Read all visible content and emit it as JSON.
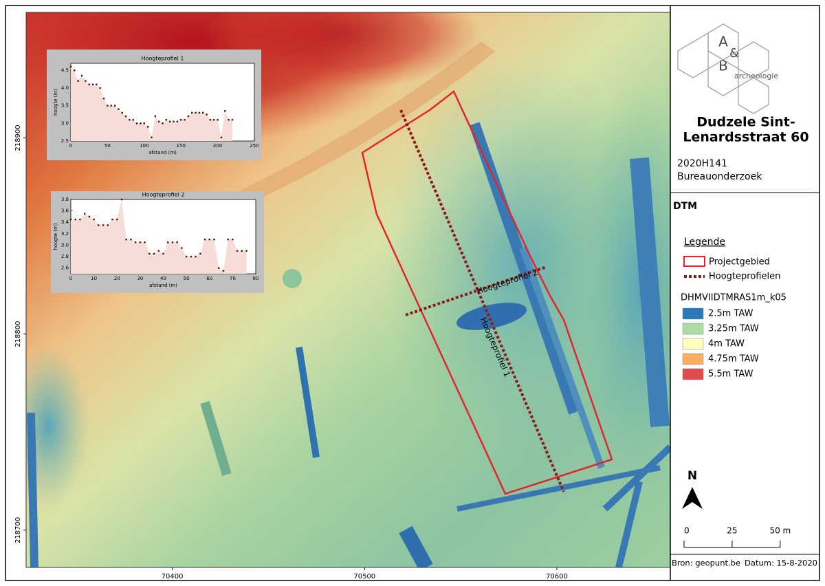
{
  "map": {
    "xlim": [
      70324,
      70659
    ],
    "ylim": [
      218681,
      218964
    ],
    "xticks": [
      70400,
      70500,
      70600
    ],
    "yticks": [
      218700,
      218800,
      218900
    ],
    "labels": [
      "Hoogteprofiel 1",
      "Hoogteprofiel 2"
    ]
  },
  "chart_data": [
    {
      "type": "area",
      "title": "Hoogteprofiel 1",
      "x_label": "afstand (m)",
      "y_label": "hoogte (m)",
      "xlim": [
        0,
        250
      ],
      "ylim": [
        2.5,
        4.7
      ],
      "xticks": [
        0,
        50,
        100,
        150,
        200,
        250
      ],
      "yticks": [
        2.5,
        {
          "value": 3,
          "label": "3.0"
        },
        3.5,
        {
          "value": 4,
          "label": "4.0"
        },
        4.5
      ],
      "fill": "#f6ddd7",
      "color": "#4a1414",
      "x": [
        0,
        5,
        10,
        15,
        20,
        25,
        30,
        35,
        40,
        45,
        50,
        55,
        60,
        65,
        70,
        75,
        80,
        85,
        90,
        95,
        100,
        105,
        110,
        115,
        120,
        125,
        130,
        135,
        140,
        145,
        150,
        155,
        160,
        165,
        170,
        175,
        180,
        185,
        190,
        195,
        200,
        205,
        210,
        215,
        220
      ],
      "values": [
        4.6,
        4.5,
        4.2,
        4.35,
        4.2,
        4.1,
        4.1,
        4.1,
        4.0,
        3.7,
        3.5,
        3.5,
        3.5,
        3.4,
        3.3,
        3.2,
        3.1,
        3.1,
        3.0,
        3.0,
        3.0,
        2.9,
        2.6,
        3.2,
        3.05,
        3.0,
        3.1,
        3.05,
        3.05,
        3.05,
        3.1,
        3.1,
        3.2,
        3.3,
        3.3,
        3.3,
        3.3,
        3.25,
        3.1,
        3.1,
        3.1,
        2.6,
        3.35,
        3.1,
        3.1
      ]
    },
    {
      "type": "area",
      "title": "Hoogteprofiel 2",
      "x_label": "afstand (m)",
      "y_label": "hoogte (m)",
      "xlim": [
        0,
        80
      ],
      "ylim": [
        2.5,
        3.8
      ],
      "xticks": [
        0,
        10,
        20,
        30,
        40,
        50,
        60,
        70,
        80
      ],
      "yticks": [
        2.6,
        2.8,
        {
          "value": 3,
          "label": "3.0"
        },
        3.2,
        3.4,
        3.6,
        3.8
      ],
      "fill": "#f6ddd7",
      "color": "#4a1414",
      "x": [
        0,
        2,
        4,
        6,
        8,
        10,
        12,
        14,
        16,
        18,
        20,
        22,
        24,
        26,
        28,
        30,
        32,
        34,
        36,
        38,
        40,
        42,
        44,
        46,
        48,
        50,
        52,
        54,
        56,
        58,
        60,
        62,
        64,
        66,
        68,
        70,
        72,
        74,
        76
      ],
      "values": [
        3.45,
        3.45,
        3.45,
        3.55,
        3.5,
        3.45,
        3.35,
        3.35,
        3.35,
        3.45,
        3.45,
        3.8,
        3.1,
        3.1,
        3.05,
        3.05,
        3.05,
        2.85,
        2.85,
        2.9,
        2.85,
        3.05,
        3.05,
        3.05,
        2.95,
        2.8,
        2.8,
        2.8,
        2.85,
        3.1,
        3.1,
        3.1,
        2.6,
        2.55,
        3.1,
        3.1,
        2.9,
        2.9,
        2.9
      ]
    }
  ],
  "panel": {
    "logo": [
      "A",
      "&",
      "B",
      "archeologie"
    ],
    "title_lines": [
      "Dudzele Sint-",
      "Lenardsstraat 60"
    ],
    "code": "2020H141",
    "kind": "Bureauonderzoek",
    "section": "DTM",
    "legend_title": "Legende",
    "legend": [
      {
        "name": "Projectgebied",
        "color": "#e3242b"
      },
      {
        "name": "Hoogteprofielen",
        "color": "#8e1b1b"
      }
    ],
    "raster_title": "DHMVIIDTMRAS1m_k05",
    "classes": [
      {
        "label": "2.5m TAW",
        "color": "#2c7bb6"
      },
      {
        "label": "3.25m TAW",
        "color": "#abdda4"
      },
      {
        "label": "4m TAW",
        "color": "#ffffbf"
      },
      {
        "label": "4.75m TAW",
        "color": "#fdae61"
      },
      {
        "label": "5.5m TAW",
        "color": "#e34a4a"
      }
    ],
    "north": "N",
    "scale_ticks": [
      0,
      25,
      {
        "value": 50,
        "label": "50 m"
      }
    ],
    "source": "Bron: geopunt.be",
    "date": "Datum: 15-8-2020"
  }
}
